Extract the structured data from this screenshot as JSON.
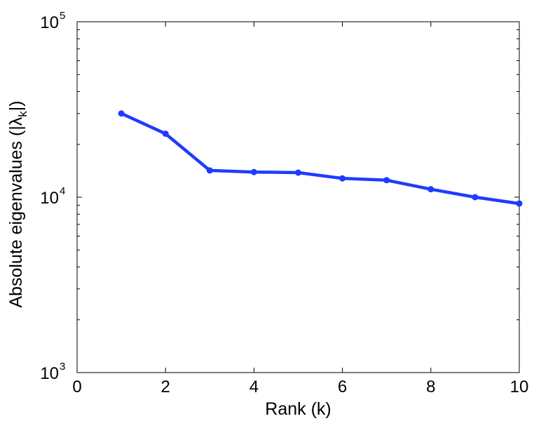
{
  "chart_data": {
    "type": "line",
    "title": "",
    "xlabel": "Rank (k)",
    "ylabel": {
      "prefix": "Absolute eigenvalues (|",
      "symbol": "λ",
      "subscript": "k",
      "suffix": "|)"
    },
    "x_scale": "linear",
    "y_scale": "log",
    "xlim": [
      0,
      10
    ],
    "ylim": [
      1000,
      100000
    ],
    "x_ticks": [
      0,
      2,
      4,
      6,
      8,
      10
    ],
    "y_ticks": [
      {
        "value": 1000,
        "base": "10",
        "exponent": "3"
      },
      {
        "value": 10000,
        "base": "10",
        "exponent": "4"
      },
      {
        "value": 100000,
        "base": "10",
        "exponent": "5"
      }
    ],
    "grid": false,
    "series": [
      {
        "color": "#1f3bff",
        "marker": "circle",
        "x": [
          1,
          2,
          3,
          4,
          5,
          6,
          7,
          8,
          9,
          10
        ],
        "y": [
          30000,
          23000,
          14200,
          13900,
          13800,
          12800,
          12500,
          11100,
          10000,
          9200
        ]
      }
    ]
  }
}
